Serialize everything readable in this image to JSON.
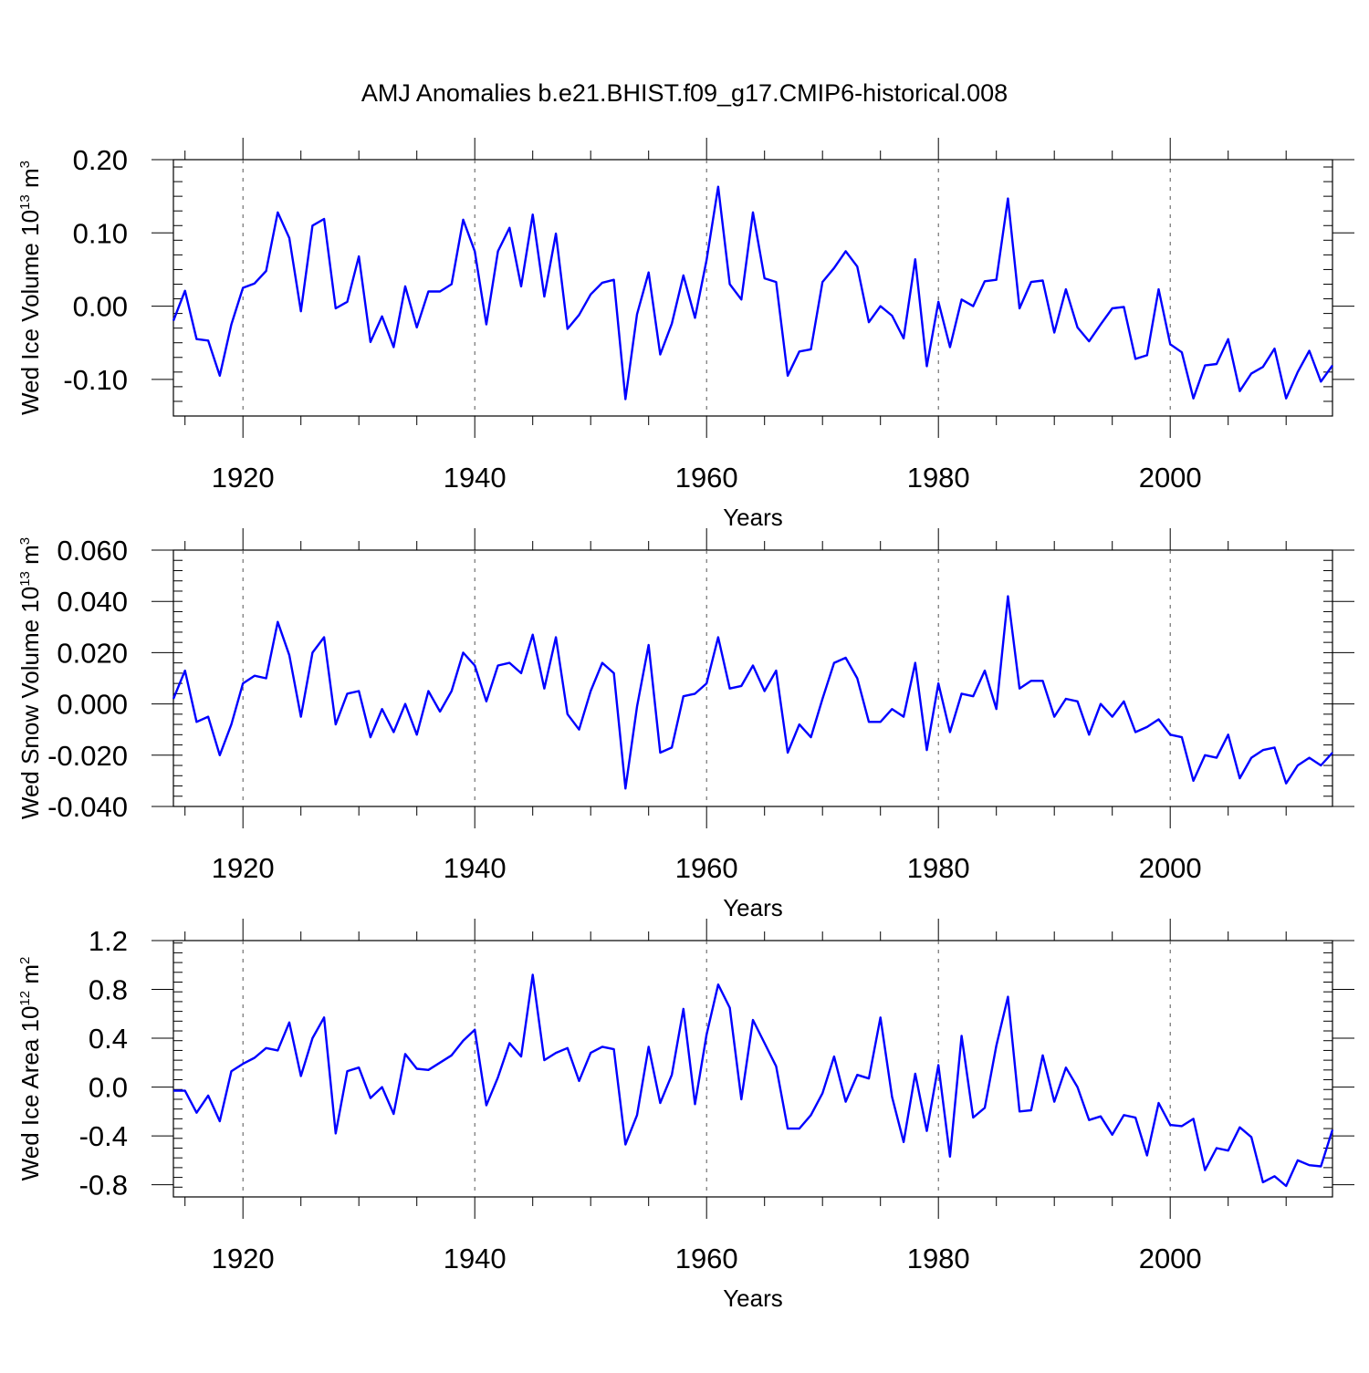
{
  "chart_data": {
    "title": "AMJ Anomalies b.e21.BHIST.f09_g17.CMIP6-historical.008",
    "line_color": "#0000ff",
    "panels": [
      {
        "type": "line",
        "name": "ice-volume",
        "ylabel": {
          "base": "Wed Ice Volume 10",
          "exp": "13",
          "unit": " m",
          "unit_exp": "3"
        },
        "xlabel": "Years",
        "xlim": [
          1914,
          2014
        ],
        "ylim": [
          -0.15,
          0.2
        ],
        "yticks": [
          -0.1,
          0.0,
          0.1,
          0.2
        ],
        "ytick_labels": [
          "-0.10",
          "0.00",
          "0.10",
          "0.20"
        ],
        "xticks": [
          1920,
          1940,
          1960,
          1980,
          2000
        ],
        "xtick_labels": [
          "1920",
          "1940",
          "1960",
          "1980",
          "2000"
        ],
        "x_start": 1914,
        "values": [
          -0.02,
          0.021,
          -0.045,
          -0.047,
          -0.095,
          -0.025,
          0.025,
          0.031,
          0.048,
          0.128,
          0.093,
          -0.007,
          0.11,
          0.119,
          -0.003,
          0.006,
          0.068,
          -0.049,
          -0.014,
          -0.056,
          0.027,
          -0.029,
          0.02,
          0.02,
          0.03,
          0.118,
          0.075,
          -0.025,
          0.075,
          0.107,
          0.027,
          0.125,
          0.013,
          0.099,
          -0.031,
          -0.012,
          0.016,
          0.032,
          0.036,
          -0.127,
          -0.011,
          0.046,
          -0.066,
          -0.024,
          0.042,
          -0.016,
          0.063,
          0.163,
          0.03,
          0.009,
          0.128,
          0.038,
          0.033,
          -0.095,
          -0.062,
          -0.059,
          0.033,
          0.052,
          0.075,
          0.054,
          -0.022,
          0.0,
          -0.013,
          -0.044,
          0.064,
          -0.082,
          0.006,
          -0.056,
          0.009,
          0.0,
          0.034,
          0.036,
          0.147,
          -0.003,
          0.033,
          0.035,
          -0.036,
          0.023,
          -0.029,
          -0.048,
          -0.025,
          -0.003,
          -0.001,
          -0.072,
          -0.067,
          0.023,
          -0.052,
          -0.063,
          -0.126,
          -0.081,
          -0.079,
          -0.045,
          -0.116,
          -0.092,
          -0.083,
          -0.058,
          -0.126,
          -0.09,
          -0.061,
          -0.103,
          -0.081
        ]
      },
      {
        "type": "line",
        "name": "snow-volume",
        "ylabel": {
          "base": "Wed Snow Volume 10",
          "exp": "13",
          "unit": " m",
          "unit_exp": "3"
        },
        "xlabel": "Years",
        "xlim": [
          1914,
          2014
        ],
        "ylim": [
          -0.04,
          0.06
        ],
        "yticks": [
          -0.04,
          -0.02,
          0.0,
          0.02,
          0.04,
          0.06
        ],
        "ytick_labels": [
          "-0.040",
          "-0.020",
          "0.000",
          "0.020",
          "0.040",
          "0.060"
        ],
        "xticks": [
          1920,
          1940,
          1960,
          1980,
          2000
        ],
        "xtick_labels": [
          "1920",
          "1940",
          "1960",
          "1980",
          "2000"
        ],
        "x_start": 1914,
        "values": [
          0.002,
          0.013,
          -0.007,
          -0.005,
          -0.02,
          -0.008,
          0.008,
          0.011,
          0.01,
          0.032,
          0.019,
          -0.005,
          0.02,
          0.026,
          -0.008,
          0.004,
          0.005,
          -0.013,
          -0.002,
          -0.011,
          0.0,
          -0.012,
          0.005,
          -0.003,
          0.005,
          0.02,
          0.015,
          0.001,
          0.015,
          0.016,
          0.012,
          0.027,
          0.006,
          0.026,
          -0.004,
          -0.01,
          0.005,
          0.016,
          0.012,
          -0.033,
          -0.001,
          0.023,
          -0.019,
          -0.017,
          0.003,
          0.004,
          0.008,
          0.026,
          0.006,
          0.007,
          0.015,
          0.005,
          0.013,
          -0.019,
          -0.008,
          -0.013,
          0.002,
          0.016,
          0.018,
          0.01,
          -0.007,
          -0.007,
          -0.002,
          -0.005,
          0.016,
          -0.018,
          0.008,
          -0.011,
          0.004,
          0.003,
          0.013,
          -0.002,
          0.042,
          0.006,
          0.009,
          0.009,
          -0.005,
          0.002,
          0.001,
          -0.012,
          0.0,
          -0.005,
          0.001,
          -0.011,
          -0.009,
          -0.006,
          -0.012,
          -0.013,
          -0.03,
          -0.02,
          -0.021,
          -0.012,
          -0.029,
          -0.021,
          -0.018,
          -0.017,
          -0.031,
          -0.024,
          -0.021,
          -0.024,
          -0.019
        ]
      },
      {
        "type": "line",
        "name": "ice-area",
        "ylabel": {
          "base": "Wed Ice Area 10",
          "exp": "12",
          "unit": " m",
          "unit_exp": "2"
        },
        "xlabel": "Years",
        "xlim": [
          1914,
          2014
        ],
        "ylim": [
          -0.9,
          1.2
        ],
        "yticks": [
          -0.8,
          -0.4,
          0.0,
          0.4,
          0.8,
          1.2
        ],
        "ytick_labels": [
          "-0.8",
          "-0.4",
          "0.0",
          "0.4",
          "0.8",
          "1.2"
        ],
        "xticks": [
          1920,
          1940,
          1960,
          1980,
          2000
        ],
        "xtick_labels": [
          "1920",
          "1940",
          "1960",
          "1980",
          "2000"
        ],
        "x_start": 1914,
        "values": [
          -0.03,
          -0.03,
          -0.21,
          -0.07,
          -0.28,
          0.13,
          0.19,
          0.24,
          0.32,
          0.3,
          0.53,
          0.09,
          0.4,
          0.57,
          -0.38,
          0.13,
          0.16,
          -0.09,
          0.0,
          -0.22,
          0.27,
          0.15,
          0.14,
          0.2,
          0.26,
          0.38,
          0.47,
          -0.15,
          0.08,
          0.36,
          0.25,
          0.92,
          0.22,
          0.28,
          0.32,
          0.05,
          0.28,
          0.33,
          0.31,
          -0.47,
          -0.23,
          0.33,
          -0.13,
          0.1,
          0.64,
          -0.14,
          0.43,
          0.84,
          0.65,
          -0.1,
          0.55,
          0.36,
          0.17,
          -0.34,
          -0.34,
          -0.23,
          -0.05,
          0.25,
          -0.12,
          0.1,
          0.07,
          0.57,
          -0.08,
          -0.45,
          0.11,
          -0.36,
          0.18,
          -0.57,
          0.42,
          -0.25,
          -0.17,
          0.34,
          0.74,
          -0.2,
          -0.19,
          0.26,
          -0.12,
          0.16,
          0.0,
          -0.27,
          -0.24,
          -0.39,
          -0.23,
          -0.25,
          -0.56,
          -0.13,
          -0.31,
          -0.32,
          -0.26,
          -0.68,
          -0.5,
          -0.52,
          -0.33,
          -0.41,
          -0.78,
          -0.73,
          -0.81,
          -0.6,
          -0.64,
          -0.65,
          -0.35
        ]
      }
    ]
  }
}
